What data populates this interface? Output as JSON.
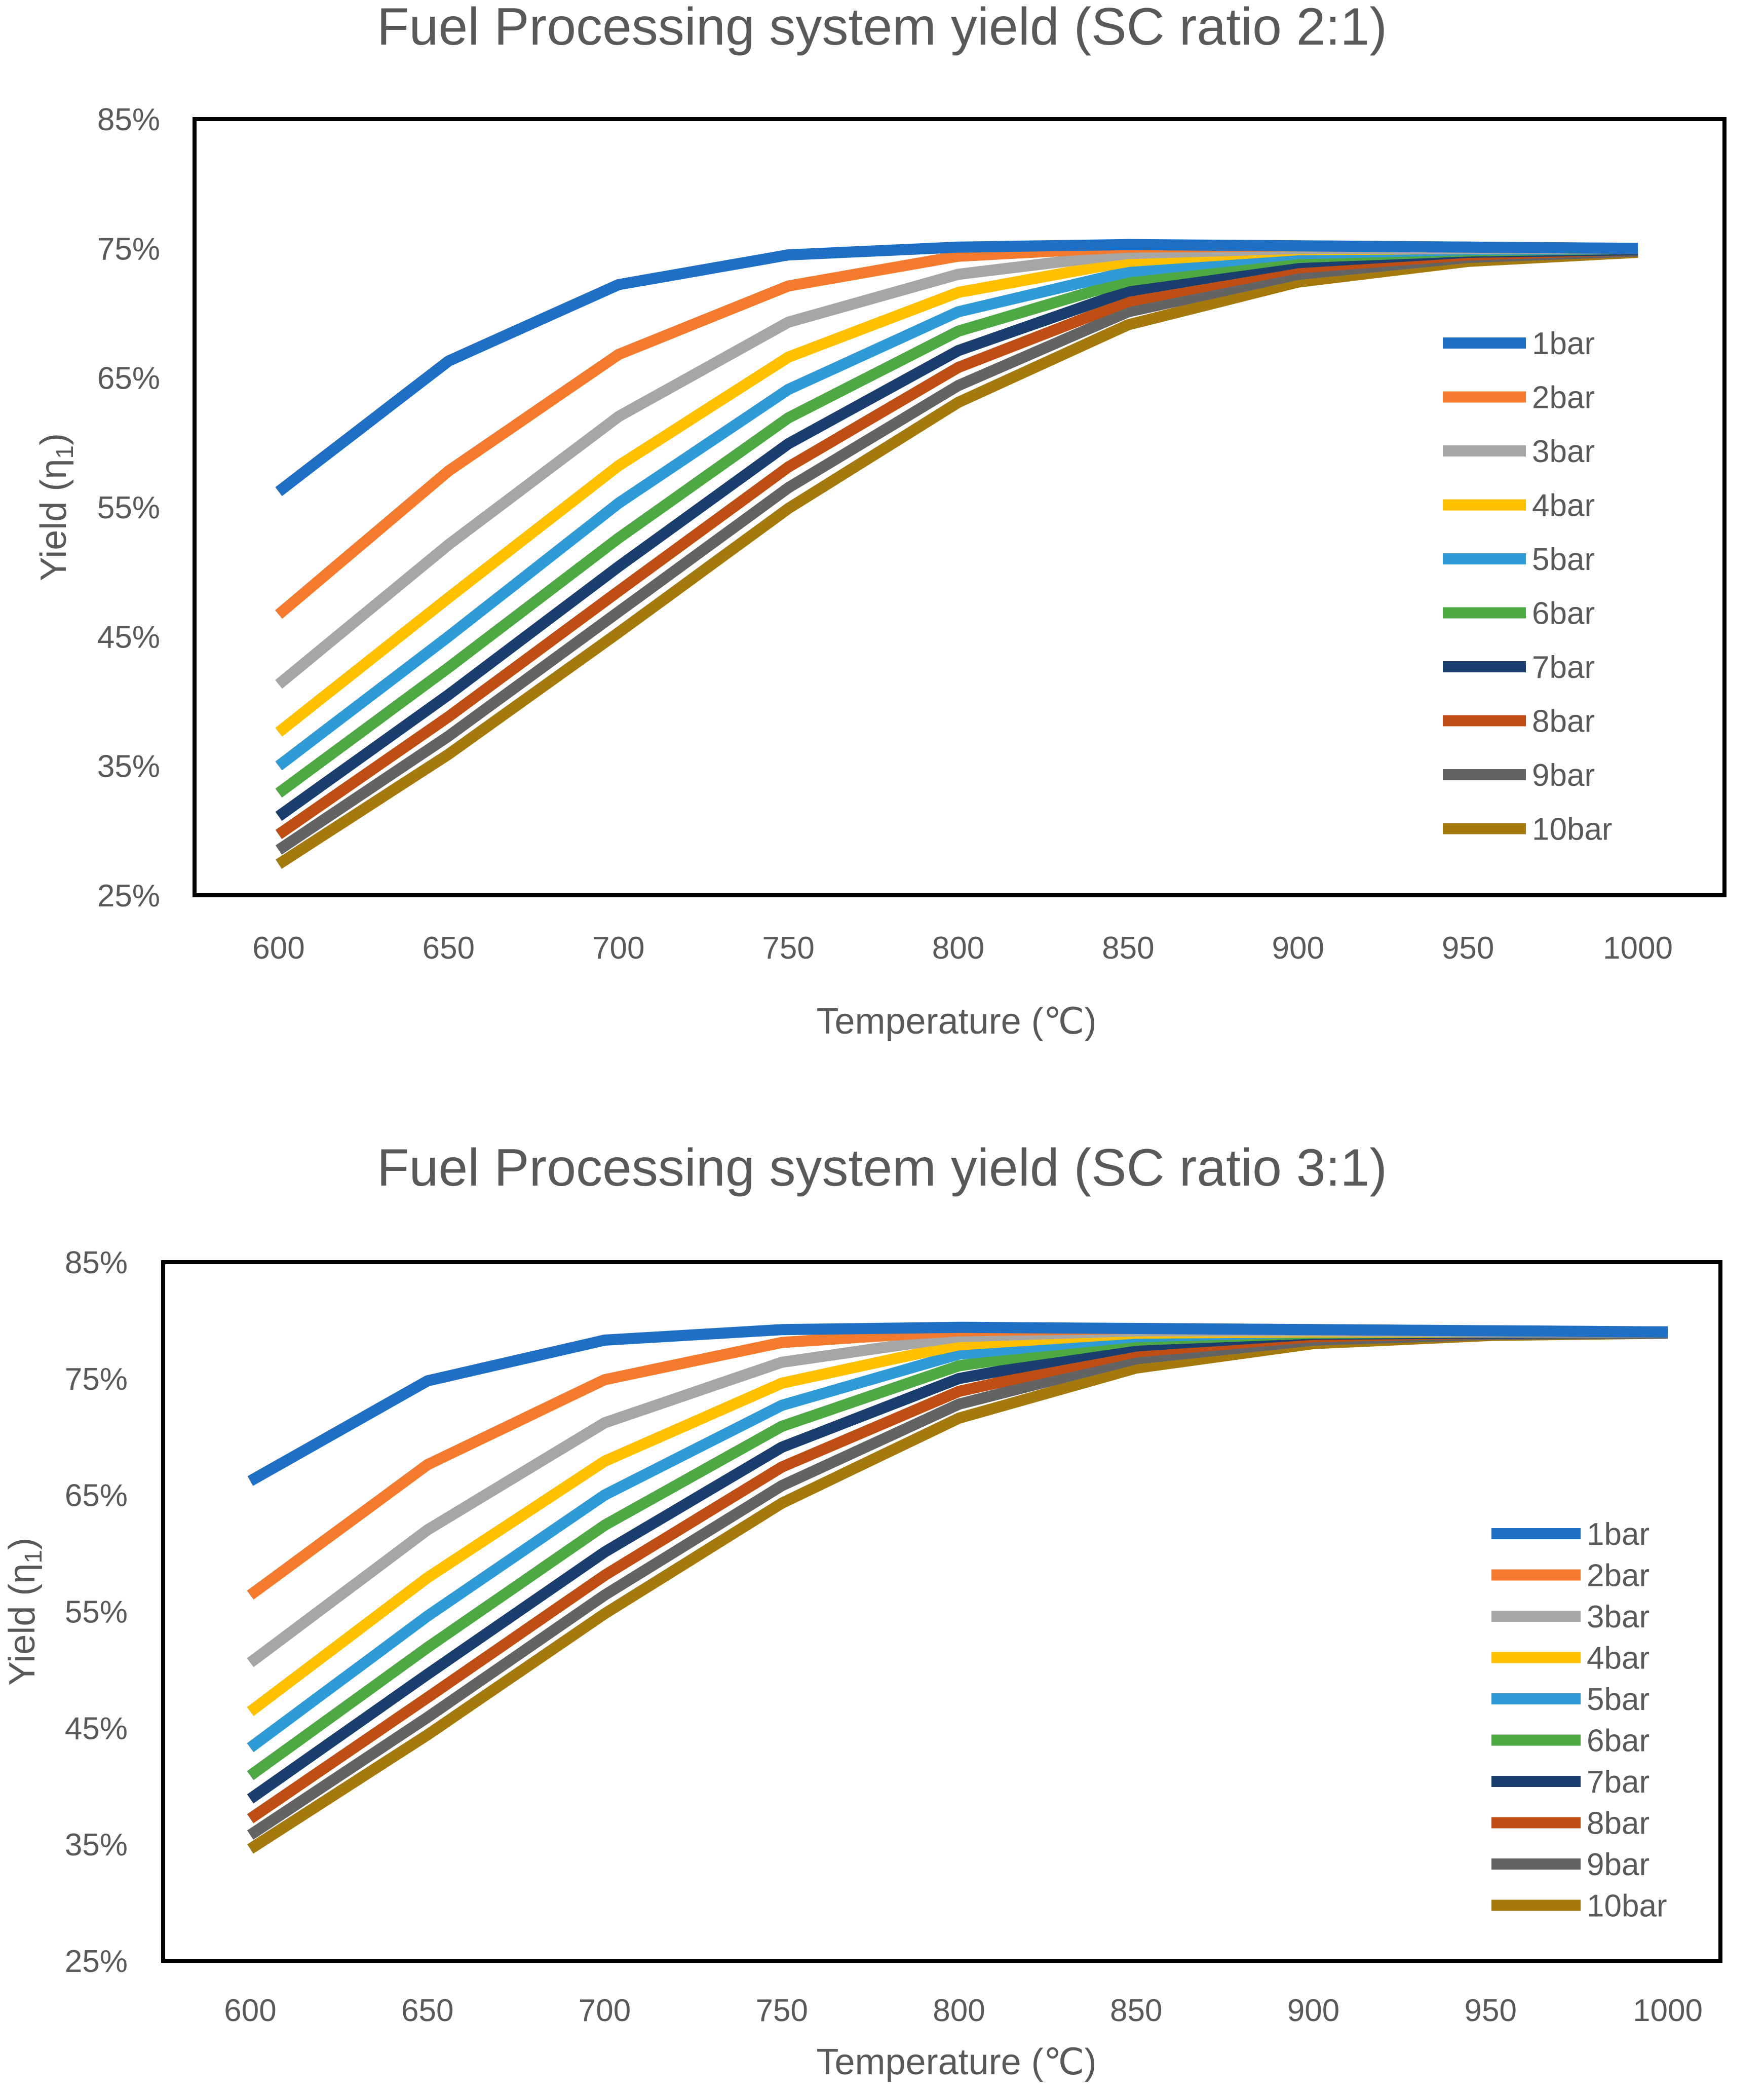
{
  "chart_data": [
    {
      "type": "line",
      "title": "Fuel Processing system yield (SC ratio 2:1)",
      "xlabel": "Temperature (℃)",
      "ylabel": "Yield (η₁)",
      "ylabel_main": "Yield (η",
      "ylabel_sub": "1",
      "ylabel_close": ")",
      "x": [
        600,
        650,
        700,
        750,
        800,
        850,
        900,
        950,
        1000
      ],
      "ylim": [
        25,
        85
      ],
      "yticks": [
        "25%",
        "35%",
        "45%",
        "55%",
        "65%",
        "75%",
        "85%"
      ],
      "legend_position": "right",
      "grid": false,
      "series": [
        {
          "name": "1bar",
          "color": "#1F6FC5",
          "values": [
            56.2,
            66.3,
            72.2,
            74.5,
            75.1,
            75.3,
            75.2,
            75.1,
            75.0
          ]
        },
        {
          "name": "2bar",
          "color": "#F47A2D",
          "values": [
            46.7,
            57.8,
            66.8,
            72.1,
            74.4,
            75.1,
            75.2,
            75.1,
            75.0
          ]
        },
        {
          "name": "3bar",
          "color": "#A6A6A6",
          "values": [
            41.3,
            52.1,
            62.0,
            69.3,
            73.0,
            74.6,
            75.0,
            75.0,
            75.0
          ]
        },
        {
          "name": "4bar",
          "color": "#FFC000",
          "values": [
            37.6,
            48.0,
            58.2,
            66.6,
            71.6,
            74.0,
            74.9,
            75.0,
            75.0
          ]
        },
        {
          "name": "5bar",
          "color": "#2E9AD6",
          "values": [
            35.0,
            45.0,
            55.3,
            64.1,
            70.1,
            73.2,
            74.6,
            74.9,
            75.0
          ]
        },
        {
          "name": "6bar",
          "color": "#4EA843",
          "values": [
            32.9,
            42.6,
            52.6,
            61.9,
            68.6,
            72.5,
            74.3,
            74.8,
            75.0
          ]
        },
        {
          "name": "7bar",
          "color": "#1A3F6F",
          "values": [
            31.1,
            40.5,
            50.4,
            59.9,
            67.1,
            71.7,
            73.9,
            74.7,
            74.9
          ]
        },
        {
          "name": "8bar",
          "color": "#BF4E14",
          "values": [
            29.7,
            38.8,
            48.5,
            58.1,
            65.8,
            70.9,
            73.5,
            74.5,
            74.9
          ]
        },
        {
          "name": "9bar",
          "color": "#636363",
          "values": [
            28.5,
            37.3,
            46.9,
            56.5,
            64.4,
            70.1,
            73.0,
            74.3,
            74.8
          ]
        },
        {
          "name": "10bar",
          "color": "#A47A0F",
          "values": [
            27.4,
            35.9,
            45.3,
            54.9,
            63.1,
            69.1,
            72.4,
            74.0,
            74.7
          ]
        }
      ]
    },
    {
      "type": "line",
      "title": "Fuel Processing system yield (SC ratio 3:1)",
      "xlabel": "Temperature (℃)",
      "ylabel": "Yield (η₁)",
      "ylabel_main": "Yield (η",
      "ylabel_sub": "1",
      "ylabel_close": ")",
      "x": [
        600,
        650,
        700,
        750,
        800,
        850,
        900,
        950,
        1000
      ],
      "ylim": [
        25,
        85
      ],
      "yticks": [
        "25%",
        "35%",
        "45%",
        "55%",
        "65%",
        "75%",
        "85%"
      ],
      "legend_position": "right",
      "grid": false,
      "series": [
        {
          "name": "1bar",
          "color": "#1F6FC5",
          "values": [
            66.2,
            74.8,
            78.3,
            79.2,
            79.4,
            79.3,
            79.2,
            79.1,
            79.0
          ]
        },
        {
          "name": "2bar",
          "color": "#F47A2D",
          "values": [
            56.4,
            67.6,
            74.9,
            78.1,
            79.1,
            79.3,
            79.2,
            79.1,
            79.0
          ]
        },
        {
          "name": "3bar",
          "color": "#A6A6A6",
          "values": [
            50.6,
            62.0,
            71.2,
            76.4,
            78.6,
            79.1,
            79.1,
            79.0,
            79.0
          ]
        },
        {
          "name": "4bar",
          "color": "#FFC000",
          "values": [
            46.4,
            57.9,
            67.9,
            74.6,
            77.9,
            78.9,
            79.0,
            79.0,
            79.0
          ]
        },
        {
          "name": "5bar",
          "color": "#2E9AD6",
          "values": [
            43.3,
            54.6,
            65.0,
            72.7,
            77.1,
            78.6,
            79.0,
            79.0,
            79.0
          ]
        },
        {
          "name": "6bar",
          "color": "#4EA843",
          "values": [
            40.9,
            51.9,
            62.4,
            70.9,
            76.1,
            78.3,
            78.9,
            79.0,
            79.0
          ]
        },
        {
          "name": "7bar",
          "color": "#1A3F6F",
          "values": [
            38.9,
            49.6,
            60.1,
            69.1,
            75.0,
            77.8,
            78.8,
            78.9,
            79.0
          ]
        },
        {
          "name": "8bar",
          "color": "#BF4E14",
          "values": [
            37.2,
            47.6,
            58.1,
            67.4,
            73.9,
            77.3,
            78.6,
            78.9,
            79.0
          ]
        },
        {
          "name": "9bar",
          "color": "#636363",
          "values": [
            35.8,
            45.9,
            56.4,
            65.8,
            72.8,
            76.7,
            78.3,
            78.8,
            78.9
          ]
        },
        {
          "name": "10bar",
          "color": "#A47A0F",
          "values": [
            34.6,
            44.4,
            54.8,
            64.3,
            71.6,
            75.9,
            78.0,
            78.7,
            78.9
          ]
        }
      ]
    }
  ]
}
